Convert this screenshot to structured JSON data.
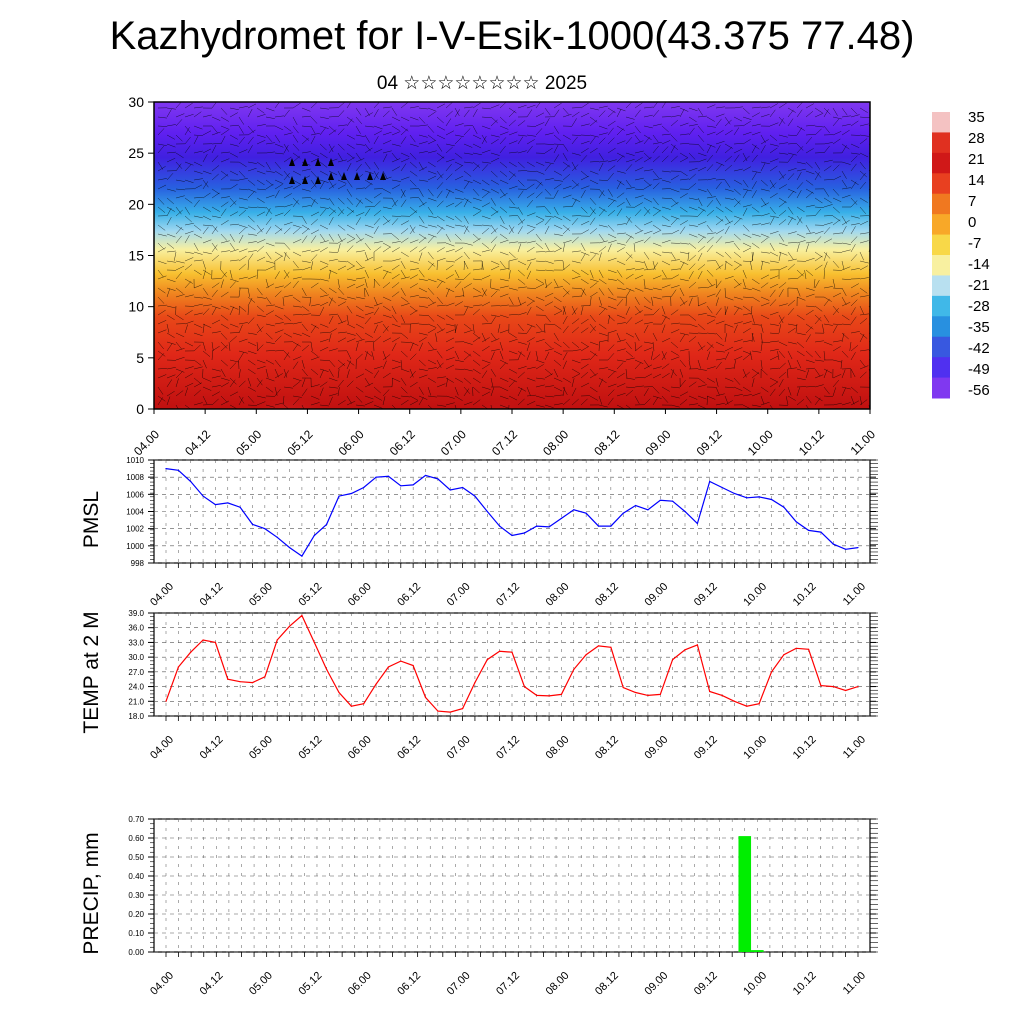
{
  "title": "Kazhydromet for I-V-Esik-1000(43.375 77.48)",
  "subtitle": "04 ☆☆☆☆☆☆☆☆ 2025",
  "time_ticks": [
    "04.00",
    "04.12",
    "05.00",
    "05.12",
    "06.00",
    "06.12",
    "07.00",
    "07.12",
    "08.00",
    "08.12",
    "09.00",
    "09.12",
    "10.00",
    "10.12",
    "11.00"
  ],
  "colorbar": {
    "labels": [
      "35",
      "28",
      "21",
      "14",
      "7",
      "0",
      "-7",
      "-14",
      "-21",
      "-28",
      "-35",
      "-42",
      "-49",
      "-56"
    ],
    "colors": [
      "#f4c2c2",
      "#e03020",
      "#d01818",
      "#e84020",
      "#f07820",
      "#f8a828",
      "#f8d848",
      "#f8f0a0",
      "#b8e0f0",
      "#40b8e8",
      "#2890e0",
      "#3858e0",
      "#5030f0",
      "#8038f0"
    ]
  },
  "chart_data": [
    {
      "type": "heatmap",
      "title": "",
      "ylabel": "",
      "ylim": [
        0,
        30
      ],
      "yticks": [
        "0",
        "5",
        "10",
        "15",
        "20",
        "25",
        "30"
      ],
      "x_range": [
        "04.00",
        "11.00"
      ],
      "color_scale": [
        -56,
        35
      ],
      "vertical_temperature_profile": [
        {
          "level": 0,
          "value": 30
        },
        {
          "level": 5,
          "value": 25
        },
        {
          "level": 10,
          "value": 18
        },
        {
          "level": 15,
          "value": -7
        },
        {
          "level": 20,
          "value": -28
        },
        {
          "level": 25,
          "value": -56
        },
        {
          "level": 30,
          "value": -56
        }
      ]
    },
    {
      "type": "line",
      "ylabel": "PMSL",
      "ylim": [
        998,
        1010
      ],
      "yticks": [
        "998",
        "1000",
        "1002",
        "1004",
        "1006",
        "1008",
        "1010"
      ],
      "color": "#0000ff",
      "series": [
        {
          "values": [
            1009,
            1008.8,
            1007.5,
            1005.8,
            1004.8,
            1005,
            1004.5,
            1002.5,
            1002,
            1001,
            999.8,
            998.8,
            1001.2,
            1002.5,
            1005.8,
            1006.1,
            1006.8,
            1008,
            1008.1,
            1007,
            1007.1,
            1008.2,
            1007.8,
            1006.5,
            1006.8,
            1005.8,
            1004,
            1002.3,
            1001.2,
            1001.5,
            1002.3,
            1002.2,
            1003.2,
            1004.2,
            1003.8,
            1002.3,
            1002.3,
            1003.8,
            1004.7,
            1004.2,
            1005.3,
            1005.2,
            1004,
            1002.6,
            1007.5,
            1006.8,
            1006.1,
            1005.6,
            1005.7,
            1005.4,
            1004.5,
            1002.8,
            1001.8,
            1001.6,
            1000.2,
            999.6,
            999.8
          ]
        }
      ]
    },
    {
      "type": "line",
      "ylabel": "TEMP at 2 M",
      "ylim": [
        18,
        39
      ],
      "yticks": [
        "18.0",
        "21.0",
        "24.0",
        "27.0",
        "30.0",
        "33.0",
        "36.0",
        "39.0"
      ],
      "color": "#ff0000",
      "series": [
        {
          "values": [
            21,
            28,
            31,
            33.5,
            33,
            25.5,
            25,
            24.8,
            26,
            33.5,
            36.3,
            38.5,
            33,
            27.5,
            22.8,
            20,
            20.5,
            24.5,
            28,
            29.2,
            28.3,
            21.8,
            19,
            18.8,
            19.5,
            24.8,
            29.5,
            31.2,
            31,
            24,
            22.2,
            22.1,
            22.4,
            27.5,
            30.5,
            32.3,
            32,
            23.8,
            22.8,
            22.2,
            22.4,
            29.5,
            31.5,
            32.5,
            23,
            22.2,
            21,
            20,
            20.5,
            27,
            30.5,
            31.8,
            31.6,
            24.2,
            24,
            23.2,
            24
          ]
        }
      ]
    },
    {
      "type": "bar",
      "ylabel": "PRECIP, mm",
      "ylim": [
        0,
        0.7
      ],
      "yticks": [
        "0.00",
        "0.10",
        "0.20",
        "0.30",
        "0.40",
        "0.50",
        "0.60",
        "0.70"
      ],
      "color": "#00ee00",
      "series": [
        {
          "values": [
            0,
            0,
            0,
            0,
            0,
            0,
            0,
            0,
            0,
            0,
            0,
            0,
            0,
            0,
            0,
            0,
            0,
            0,
            0,
            0,
            0,
            0,
            0,
            0,
            0,
            0,
            0,
            0,
            0,
            0,
            0,
            0,
            0,
            0,
            0,
            0,
            0,
            0,
            0,
            0,
            0,
            0,
            0,
            0,
            0,
            0,
            0.61,
            0.01,
            0,
            0,
            0,
            0,
            0,
            0,
            0,
            0
          ]
        }
      ]
    }
  ]
}
